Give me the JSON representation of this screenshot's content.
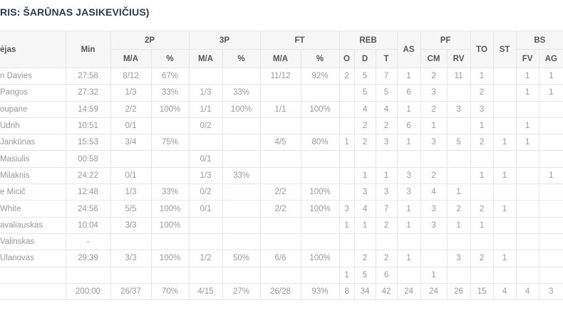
{
  "title": "RIS: ŠARŪNAS JASIKEVIČIUS)",
  "headers": {
    "player": "ėjas",
    "min": "Min",
    "p2": "2P",
    "p3": "3P",
    "ft": "FT",
    "reb": "REB",
    "as": "AS",
    "pf": "PF",
    "to": "TO",
    "st": "ST",
    "bs": "BS",
    "ma": "M/A",
    "pct": "%",
    "o": "O",
    "d": "D",
    "t": "T",
    "cm": "CM",
    "rv": "RV",
    "fv": "FV",
    "ag": "AG"
  },
  "columns": [
    "name",
    "min",
    "p2_ma",
    "p2_pct",
    "p3_ma",
    "p3_pct",
    "ft_ma",
    "ft_pct",
    "reb_o",
    "reb_d",
    "reb_t",
    "as",
    "pf_cm",
    "pf_rv",
    "to",
    "st",
    "bs_fv",
    "bs_ag"
  ],
  "rows": [
    [
      "n Davies",
      "27:58",
      "8/12",
      "67%",
      "",
      "",
      "11/12",
      "92%",
      "2",
      "5",
      "7",
      "1",
      "2",
      "11",
      "1",
      "",
      "1",
      "1"
    ],
    [
      "Pangos",
      "27:32",
      "1/3",
      "33%",
      "1/3",
      "33%",
      "",
      "",
      "",
      "5",
      "5",
      "6",
      "3",
      "",
      "2",
      "",
      "1",
      "1"
    ],
    [
      "oupane",
      "14:59",
      "2/2",
      "100%",
      "1/1",
      "100%",
      "1/1",
      "100%",
      "",
      "4",
      "4",
      "1",
      "2",
      "3",
      "3",
      "",
      "",
      ""
    ],
    [
      "Udrih",
      "10:51",
      "0/1",
      "",
      "0/2",
      "",
      "",
      "",
      "",
      "2",
      "2",
      "6",
      "1",
      "",
      "1",
      "",
      "1",
      ""
    ],
    [
      "Jankūnas",
      "15:53",
      "3/4",
      "75%",
      "",
      "",
      "4/5",
      "80%",
      "1",
      "2",
      "3",
      "1",
      "3",
      "5",
      "2",
      "1",
      "1",
      ""
    ],
    [
      "Masiulis",
      "00:58",
      "",
      "",
      "0/1",
      "",
      "",
      "",
      "",
      "",
      "",
      "",
      "",
      "",
      "",
      "",
      "",
      ""
    ],
    [
      "Milaknis",
      "24:22",
      "0/1",
      "",
      "1/3",
      "33%",
      "",
      "",
      "",
      "1",
      "1",
      "3",
      "2",
      "",
      "1",
      "1",
      "",
      "1"
    ],
    [
      "e Micič",
      "12:48",
      "1/3",
      "33%",
      "0/2",
      "",
      "2/2",
      "100%",
      "",
      "3",
      "3",
      "3",
      "4",
      "1",
      "",
      "",
      "",
      ""
    ],
    [
      "White",
      "24:56",
      "5/5",
      "100%",
      "0/1",
      "",
      "2/2",
      "100%",
      "3",
      "4",
      "7",
      "1",
      "3",
      "2",
      "2",
      "1",
      "",
      ""
    ],
    [
      "avaliauskas",
      "10:04",
      "3/3",
      "100%",
      "",
      "",
      "",
      "",
      "1",
      "1",
      "2",
      "1",
      "3",
      "1",
      "1",
      "",
      "",
      ""
    ],
    [
      "Valinskas",
      "-",
      "",
      "",
      "",
      "",
      "",
      "",
      "",
      "",
      "",
      "",
      "",
      "",
      "",
      "",
      "",
      ""
    ],
    [
      "Ulanovas",
      "29:39",
      "3/3",
      "100%",
      "1/2",
      "50%",
      "6/6",
      "100%",
      "",
      "2",
      "2",
      "1",
      "",
      "3",
      "2",
      "1",
      "",
      ""
    ],
    [
      "",
      "",
      "",
      "",
      "",
      "",
      "",
      "",
      "1",
      "5",
      "6",
      "",
      "1",
      "",
      "",
      "",
      "",
      ""
    ],
    [
      "",
      "200:00",
      "26/37",
      "70%",
      "4/15",
      "27%",
      "26/28",
      "93%",
      "8",
      "34",
      "42",
      "24",
      "24",
      "26",
      "15",
      "4",
      "4",
      "3"
    ]
  ]
}
